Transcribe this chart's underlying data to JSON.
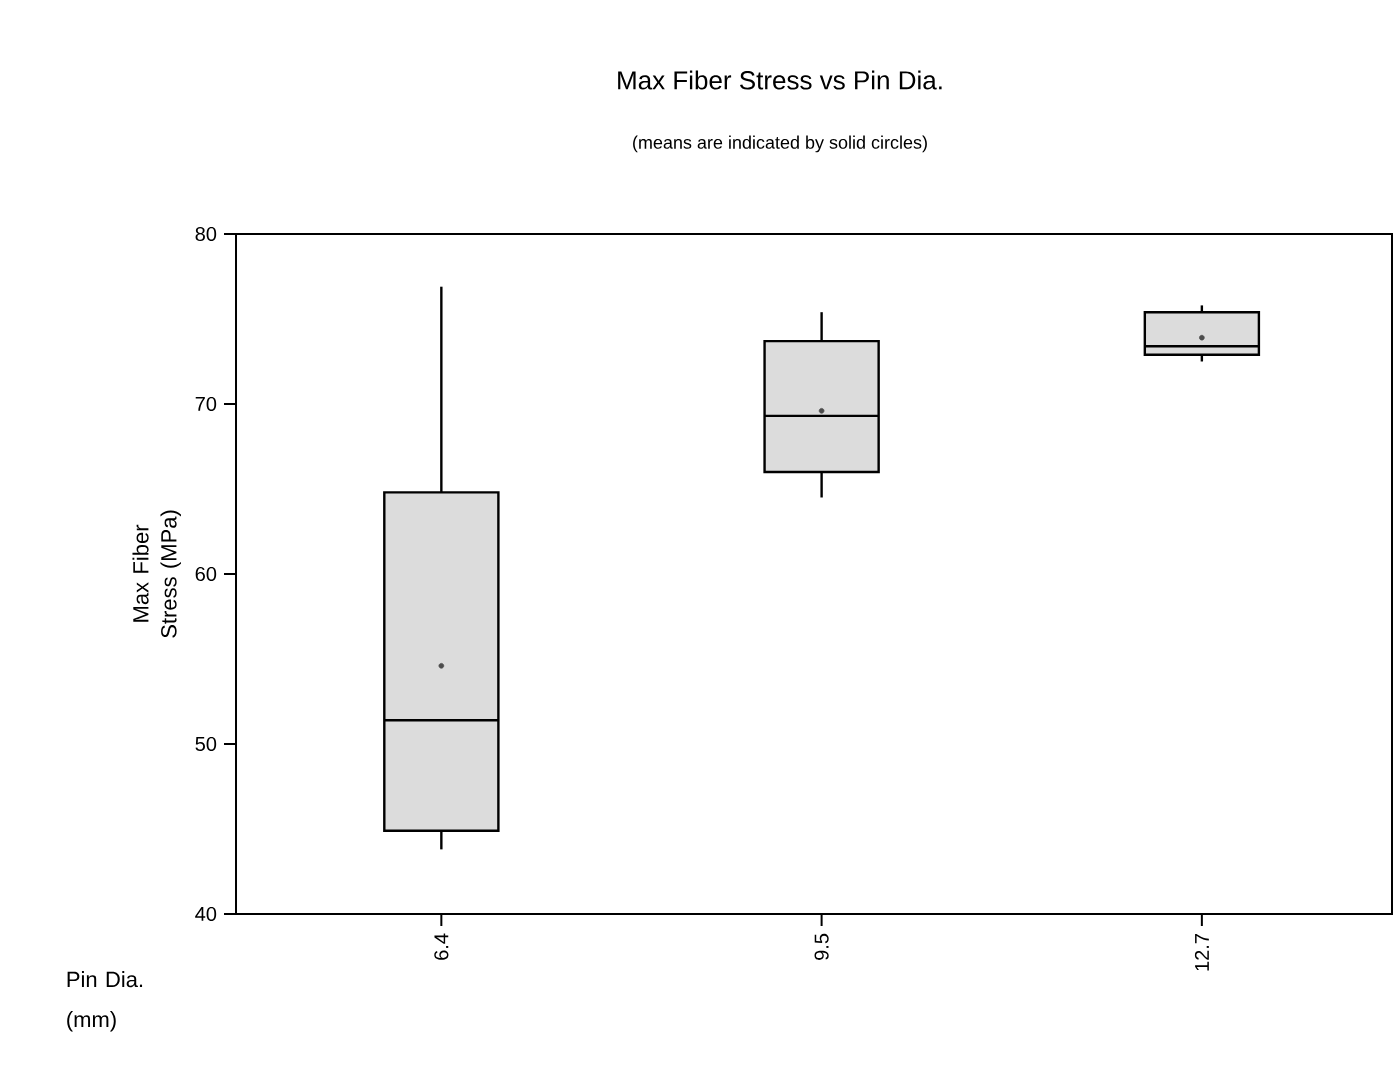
{
  "chart_data": {
    "type": "box",
    "title": "Max Fiber Stress vs Pin Dia.",
    "subtitle": "(means are indicated by solid circles)",
    "xlabel": "Pin Dia. (mm)",
    "ylabel": "Max Fiber Stress (MPa)",
    "categories": [
      "6.4",
      "9.5",
      "12.7"
    ],
    "color": "#dcdcdc",
    "boxes": [
      {
        "low": 43.8,
        "q1": 44.9,
        "median": 51.4,
        "q3": 64.8,
        "high": 76.9,
        "mean": 54.6
      },
      {
        "low": 64.5,
        "q1": 66.0,
        "median": 69.3,
        "q3": 73.7,
        "high": 75.4,
        "mean": 69.6
      },
      {
        "low": 72.5,
        "q1": 72.9,
        "median": 73.4,
        "q3": 75.4,
        "high": 75.8,
        "mean": 73.9
      }
    ],
    "ylim": [
      40,
      80
    ],
    "yticks": [
      40,
      50,
      60,
      70,
      80
    ]
  }
}
